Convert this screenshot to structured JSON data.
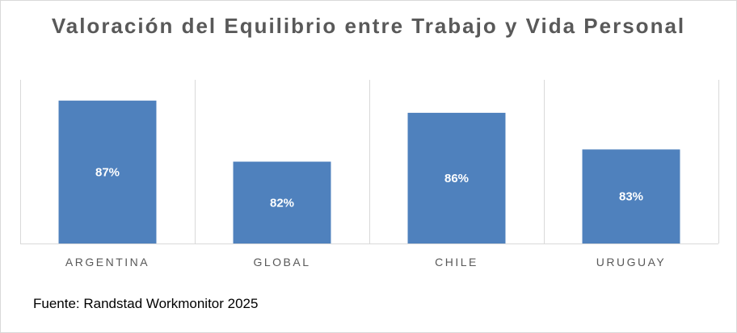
{
  "chart_data": {
    "type": "bar",
    "title": "Valoración del Equilibrio entre Trabajo y Vida Personal",
    "categories": [
      "ARGENTINA",
      "GLOBAL",
      "CHILE",
      "URUGUAY"
    ],
    "values": [
      87,
      82,
      86,
      83
    ],
    "value_labels": [
      "87%",
      "82%",
      "86%",
      "83%"
    ],
    "unit": "%",
    "ylim": [
      75.3,
      88.7
    ],
    "grid": "vertical category separators",
    "bar_color": "#4f81bd",
    "label_color": "#ffffff"
  },
  "source": "Fuente: Randstad Workmonitor 2025"
}
